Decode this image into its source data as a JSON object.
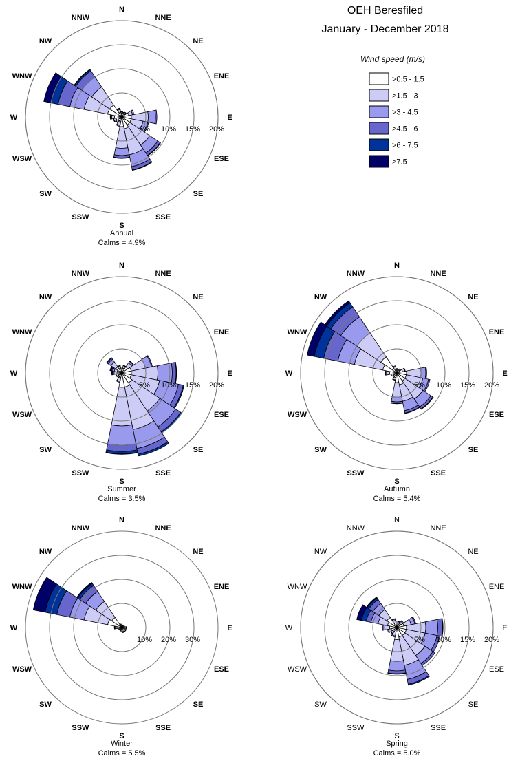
{
  "title_line1": "OEH Beresfiled",
  "title_line2": "January - December 2018",
  "legend": {
    "title": "Wind speed (m/s)",
    "items": [
      {
        "label": ">0.5 - 1.5",
        "color": "#ffffff"
      },
      {
        "label": ">1.5 - 3",
        "color": "#ccccf6"
      },
      {
        "label": ">3 - 4.5",
        "color": "#9999ee"
      },
      {
        "label": ">4.5 - 6",
        "color": "#6666cc"
      },
      {
        "label": ">6 - 7.5",
        "color": "#003399"
      },
      {
        "label": ">7.5",
        "color": "#000066"
      }
    ]
  },
  "directions": [
    "N",
    "NNE",
    "NE",
    "ENE",
    "E",
    "ESE",
    "SE",
    "SSE",
    "S",
    "SSW",
    "SW",
    "WSW",
    "W",
    "WNW",
    "NW",
    "NNW"
  ],
  "chart_data": [
    {
      "type": "windrose",
      "name": "Annual",
      "calms": "Calms = 4.9%",
      "ring_labels": [
        "5%",
        "10%",
        "15%",
        "20%"
      ],
      "ring_values": [
        5,
        10,
        15,
        20
      ],
      "max": 20,
      "bold_labels": true,
      "series": [
        [
          0.8,
          0.2,
          0.1,
          0,
          0,
          0
        ],
        [
          0.7,
          0.2,
          0.1,
          0,
          0,
          0
        ],
        [
          0.8,
          0.3,
          0.1,
          0,
          0,
          0
        ],
        [
          1.5,
          0.8,
          0.3,
          0,
          0,
          0
        ],
        [
          2,
          3.5,
          1.5,
          0.3,
          0,
          0
        ],
        [
          2,
          2.5,
          1,
          0.2,
          0,
          0
        ],
        [
          2,
          5,
          2,
          0.6,
          0.1,
          0
        ],
        [
          2.5,
          5.5,
          2.5,
          0.7,
          0.1,
          0
        ],
        [
          2,
          4.5,
          1.5,
          0.5,
          0.1,
          0
        ],
        [
          1,
          0.8,
          0.2,
          0,
          0,
          0
        ],
        [
          1,
          0.4,
          0.1,
          0,
          0,
          0
        ],
        [
          1.2,
          0.5,
          0.1,
          0,
          0,
          0
        ],
        [
          1.5,
          0.6,
          0.2,
          0.1,
          0,
          0
        ],
        [
          3,
          5,
          3,
          2.5,
          1.5,
          1.5
        ],
        [
          3,
          4.5,
          2.5,
          1.5,
          0.3,
          0.1
        ],
        [
          1,
          0.6,
          0.2,
          0.1,
          0,
          0
        ]
      ]
    },
    {
      "type": "windrose",
      "name": "Summer",
      "calms": "Calms = 3.5%",
      "ring_labels": [
        "5%",
        "10%",
        "15%",
        "20%"
      ],
      "ring_values": [
        5,
        10,
        15,
        20
      ],
      "max": 20,
      "bold_labels": true,
      "series": [
        [
          0.8,
          0.2,
          0,
          0,
          0,
          0
        ],
        [
          1,
          0.5,
          0.1,
          0,
          0,
          0
        ],
        [
          1.5,
          1,
          0.4,
          0.1,
          0,
          0
        ],
        [
          2,
          3,
          1.3,
          0.2,
          0,
          0
        ],
        [
          2,
          5.5,
          3,
          0.8,
          0.1,
          0
        ],
        [
          2,
          6,
          4,
          1,
          0.2,
          0
        ],
        [
          2.5,
          7,
          4,
          1.2,
          0.3,
          0
        ],
        [
          3,
          9,
          4,
          1.2,
          0.4,
          0
        ],
        [
          3,
          8,
          4,
          1.3,
          0.5,
          0.1
        ],
        [
          1,
          0.8,
          0.2,
          0,
          0,
          0
        ],
        [
          0.8,
          0.3,
          0.1,
          0,
          0,
          0
        ],
        [
          0.8,
          0.4,
          0.1,
          0,
          0,
          0
        ],
        [
          1,
          0.6,
          0.3,
          0.1,
          0.1,
          0
        ],
        [
          1,
          0.6,
          0.3,
          0.2,
          0.2,
          0.2
        ],
        [
          1.5,
          1.2,
          0.7,
          0.3,
          0.1,
          0
        ],
        [
          1,
          0.5,
          0.1,
          0,
          0,
          0
        ]
      ]
    },
    {
      "type": "windrose",
      "name": "Autumn",
      "calms": "Calms = 5.4%",
      "ring_labels": [
        "5%",
        "10%",
        "15%",
        "20%"
      ],
      "ring_values": [
        5,
        10,
        15,
        20
      ],
      "max": 20,
      "bold_labels": true,
      "series": [
        [
          0.7,
          0.2,
          0,
          0,
          0,
          0
        ],
        [
          0.6,
          0.2,
          0,
          0,
          0,
          0
        ],
        [
          0.7,
          0.2,
          0.1,
          0,
          0,
          0
        ],
        [
          1.2,
          0.5,
          0.1,
          0,
          0,
          0
        ],
        [
          2,
          3,
          1,
          0.2,
          0,
          0
        ],
        [
          2,
          3.5,
          1.2,
          0.3,
          0,
          0
        ],
        [
          2,
          4.5,
          2,
          0.5,
          0.1,
          0
        ],
        [
          2.5,
          3.5,
          2,
          0.5,
          0.1,
          0
        ],
        [
          2,
          3,
          1,
          0.3,
          0.1,
          0
        ],
        [
          1,
          0.5,
          0.1,
          0,
          0,
          0
        ],
        [
          0.8,
          0.3,
          0,
          0,
          0,
          0
        ],
        [
          0.8,
          0.4,
          0,
          0,
          0,
          0
        ],
        [
          1.5,
          0.6,
          0.2,
          0.1,
          0,
          0
        ],
        [
          3,
          6,
          3.5,
          3,
          2,
          1.5
        ],
        [
          4,
          6,
          4,
          2.5,
          1,
          0.5
        ],
        [
          0.8,
          0.5,
          0.2,
          0,
          0,
          0
        ]
      ]
    },
    {
      "type": "windrose",
      "name": "Winter",
      "calms": "Calms = 5.5%",
      "ring_labels": [
        "10%",
        "20%",
        "30%"
      ],
      "ring_values": [
        10,
        20,
        30
      ],
      "max": 40,
      "bold_labels": true,
      "series": [
        [
          1,
          0.2,
          0,
          0,
          0,
          0
        ],
        [
          0.7,
          0.2,
          0,
          0,
          0,
          0
        ],
        [
          0.8,
          0.2,
          0,
          0,
          0,
          0
        ],
        [
          1,
          0.3,
          0,
          0,
          0,
          0
        ],
        [
          1.2,
          0.6,
          0.1,
          0,
          0,
          0
        ],
        [
          1.3,
          0.5,
          0.1,
          0,
          0,
          0
        ],
        [
          1.5,
          0.5,
          0.1,
          0,
          0,
          0
        ],
        [
          1.8,
          0.3,
          0.1,
          0,
          0,
          0
        ],
        [
          1.7,
          0.2,
          0,
          0,
          0,
          0
        ],
        [
          1.2,
          0.2,
          0,
          0,
          0,
          0
        ],
        [
          1,
          0.2,
          0,
          0,
          0,
          0
        ],
        [
          1.2,
          0.4,
          0,
          0,
          0,
          0
        ],
        [
          2,
          0.8,
          0.2,
          0.1,
          0,
          0
        ],
        [
          6,
          10,
          6,
          5.5,
          5,
          5
        ],
        [
          5,
          8,
          5,
          3,
          1,
          0.5
        ],
        [
          1,
          0.4,
          0.1,
          0,
          0,
          0
        ]
      ]
    },
    {
      "type": "windrose",
      "name": "Spring",
      "calms": "Calms = 5.0%",
      "ring_labels": [
        "5%",
        "10%",
        "15%",
        "20%"
      ],
      "ring_values": [
        5,
        10,
        15,
        20
      ],
      "max": 20,
      "bold_labels": false,
      "series": [
        [
          1,
          0.3,
          0,
          0,
          0,
          0
        ],
        [
          0.8,
          0.4,
          0.1,
          0,
          0,
          0
        ],
        [
          1,
          0.5,
          0.2,
          0,
          0,
          0
        ],
        [
          1.5,
          1.5,
          0.8,
          0.2,
          0,
          0
        ],
        [
          2,
          4,
          2.5,
          1,
          0.1,
          0
        ],
        [
          2,
          4,
          2.5,
          0.6,
          0,
          0
        ],
        [
          2,
          5,
          2,
          0.5,
          0,
          0
        ],
        [
          2,
          6,
          3,
          1,
          0.2,
          0
        ],
        [
          2.5,
          4.5,
          2,
          0.6,
          0.1,
          0
        ],
        [
          1,
          0.8,
          0.2,
          0,
          0,
          0
        ],
        [
          1,
          0.5,
          0.1,
          0,
          0,
          0
        ],
        [
          1.2,
          0.6,
          0.2,
          0,
          0,
          0
        ],
        [
          1.5,
          1,
          0.4,
          0.2,
          0,
          0
        ],
        [
          2,
          2,
          1.5,
          1,
          1,
          1
        ],
        [
          2.5,
          2,
          1.5,
          1,
          0.4,
          0.2
        ],
        [
          1,
          0.5,
          0.3,
          0.1,
          0,
          0
        ]
      ]
    }
  ]
}
